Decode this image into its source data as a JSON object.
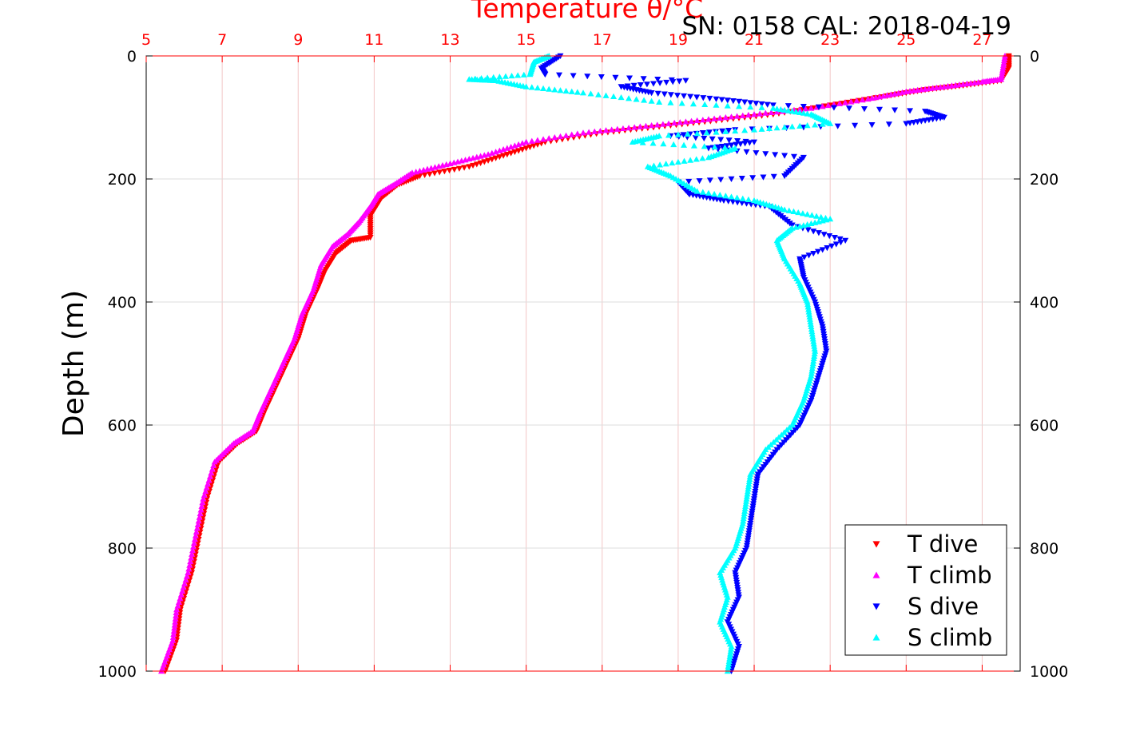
{
  "chart_data": {
    "type": "scatter",
    "title": "",
    "top_axis_label": "Temperature θ/°C",
    "annotation": "SN: 0158  CAL: 2018-04-19",
    "ylabel": "Depth (m)",
    "xlim": [
      5,
      28
    ],
    "ylim": [
      0,
      1000
    ],
    "y_reversed": true,
    "x_ticks": [
      "5",
      "7",
      "9",
      "11",
      "13",
      "15",
      "17",
      "19",
      "21",
      "23",
      "25",
      "27"
    ],
    "y_ticks": [
      "0",
      "200",
      "400",
      "600",
      "800",
      "1000"
    ],
    "grid": true,
    "legend_position": "bottom-right",
    "colors": {
      "top_axis": "#ff0000",
      "grid": "#dddddd"
    },
    "series": [
      {
        "name": "T dive",
        "marker": "triangle-down",
        "color": "#ff0000",
        "points": [
          [
            5.5,
            1000
          ],
          [
            5.8,
            950
          ],
          [
            5.9,
            900
          ],
          [
            6.2,
            840
          ],
          [
            6.4,
            780
          ],
          [
            6.6,
            720
          ],
          [
            6.9,
            660
          ],
          [
            7.4,
            630
          ],
          [
            7.9,
            610
          ],
          [
            8.1,
            580
          ],
          [
            8.4,
            540
          ],
          [
            8.7,
            500
          ],
          [
            9.0,
            460
          ],
          [
            9.2,
            420
          ],
          [
            9.5,
            380
          ],
          [
            9.7,
            350
          ],
          [
            10.0,
            320
          ],
          [
            10.4,
            300
          ],
          [
            10.9,
            295
          ],
          [
            10.9,
            260
          ],
          [
            11.2,
            230
          ],
          [
            11.6,
            210
          ],
          [
            12.2,
            195
          ],
          [
            13.5,
            180
          ],
          [
            14.5,
            160
          ],
          [
            15.5,
            140
          ],
          [
            17.0,
            125
          ],
          [
            18.5,
            115
          ],
          [
            20.0,
            105
          ],
          [
            21.5,
            95
          ],
          [
            23.0,
            80
          ],
          [
            24.5,
            65
          ],
          [
            25.5,
            55
          ],
          [
            26.5,
            48
          ],
          [
            27.5,
            40
          ],
          [
            27.7,
            20
          ],
          [
            27.7,
            0
          ]
        ]
      },
      {
        "name": "T climb",
        "marker": "triangle-up",
        "color": "#ff00ff",
        "points": [
          [
            5.4,
            1000
          ],
          [
            5.7,
            950
          ],
          [
            5.8,
            900
          ],
          [
            6.1,
            840
          ],
          [
            6.3,
            780
          ],
          [
            6.5,
            720
          ],
          [
            6.8,
            660
          ],
          [
            7.3,
            630
          ],
          [
            7.8,
            610
          ],
          [
            8.0,
            580
          ],
          [
            8.3,
            540
          ],
          [
            8.6,
            500
          ],
          [
            8.9,
            460
          ],
          [
            9.1,
            420
          ],
          [
            9.4,
            380
          ],
          [
            9.6,
            340
          ],
          [
            9.9,
            310
          ],
          [
            10.3,
            290
          ],
          [
            10.6,
            270
          ],
          [
            10.9,
            245
          ],
          [
            11.1,
            225
          ],
          [
            11.5,
            210
          ],
          [
            12.0,
            190
          ],
          [
            13.0,
            175
          ],
          [
            14.0,
            160
          ],
          [
            15.0,
            140
          ],
          [
            16.5,
            125
          ],
          [
            18.0,
            115
          ],
          [
            19.5,
            105
          ],
          [
            21.0,
            95
          ],
          [
            22.5,
            85
          ],
          [
            24.0,
            70
          ],
          [
            25.0,
            58
          ],
          [
            26.0,
            50
          ],
          [
            27.0,
            42
          ],
          [
            27.5,
            38
          ],
          [
            27.6,
            0
          ]
        ]
      },
      {
        "name": "S dive",
        "marker": "triangle-down",
        "color": "#0000ff",
        "points": [
          [
            20.4,
            1000
          ],
          [
            20.6,
            960
          ],
          [
            20.3,
            920
          ],
          [
            20.6,
            880
          ],
          [
            20.5,
            840
          ],
          [
            20.8,
            800
          ],
          [
            20.9,
            760
          ],
          [
            21.0,
            720
          ],
          [
            21.1,
            680
          ],
          [
            21.6,
            640
          ],
          [
            22.2,
            600
          ],
          [
            22.5,
            560
          ],
          [
            22.7,
            520
          ],
          [
            22.9,
            480
          ],
          [
            22.8,
            440
          ],
          [
            22.6,
            400
          ],
          [
            22.3,
            360
          ],
          [
            22.2,
            330
          ],
          [
            23.4,
            300
          ],
          [
            22.0,
            275
          ],
          [
            21.4,
            245
          ],
          [
            20.2,
            235
          ],
          [
            19.3,
            225
          ],
          [
            19.0,
            205
          ],
          [
            21.8,
            195
          ],
          [
            22.3,
            165
          ],
          [
            19.8,
            150
          ],
          [
            21.0,
            140
          ],
          [
            18.8,
            130
          ],
          [
            20.5,
            120
          ],
          [
            25.0,
            110
          ],
          [
            26.0,
            100
          ],
          [
            25.5,
            90
          ],
          [
            21.5,
            80
          ],
          [
            20.0,
            70
          ],
          [
            18.3,
            60
          ],
          [
            17.5,
            50
          ],
          [
            19.2,
            40
          ],
          [
            15.5,
            30
          ],
          [
            15.4,
            20
          ],
          [
            15.9,
            0
          ]
        ]
      },
      {
        "name": "S climb",
        "marker": "triangle-up",
        "color": "#00ffff",
        "points": [
          [
            20.3,
            1000
          ],
          [
            20.4,
            960
          ],
          [
            20.1,
            920
          ],
          [
            20.3,
            880
          ],
          [
            20.1,
            840
          ],
          [
            20.5,
            800
          ],
          [
            20.7,
            760
          ],
          [
            20.8,
            720
          ],
          [
            20.9,
            680
          ],
          [
            21.3,
            640
          ],
          [
            22.0,
            600
          ],
          [
            22.3,
            560
          ],
          [
            22.5,
            520
          ],
          [
            22.6,
            480
          ],
          [
            22.5,
            440
          ],
          [
            22.4,
            400
          ],
          [
            22.2,
            370
          ],
          [
            21.8,
            330
          ],
          [
            21.6,
            300
          ],
          [
            22.0,
            280
          ],
          [
            23.0,
            265
          ],
          [
            21.8,
            250
          ],
          [
            21.0,
            235
          ],
          [
            19.5,
            220
          ],
          [
            18.8,
            195
          ],
          [
            18.2,
            180
          ],
          [
            19.8,
            165
          ],
          [
            20.5,
            150
          ],
          [
            17.8,
            140
          ],
          [
            18.5,
            130
          ],
          [
            21.0,
            120
          ],
          [
            23.0,
            110
          ],
          [
            22.5,
            95
          ],
          [
            21.5,
            85
          ],
          [
            18.5,
            75
          ],
          [
            16.5,
            60
          ],
          [
            15.0,
            50
          ],
          [
            14.2,
            40
          ],
          [
            13.5,
            38
          ],
          [
            15.1,
            30
          ],
          [
            15.2,
            10
          ],
          [
            15.6,
            0
          ]
        ]
      }
    ]
  }
}
